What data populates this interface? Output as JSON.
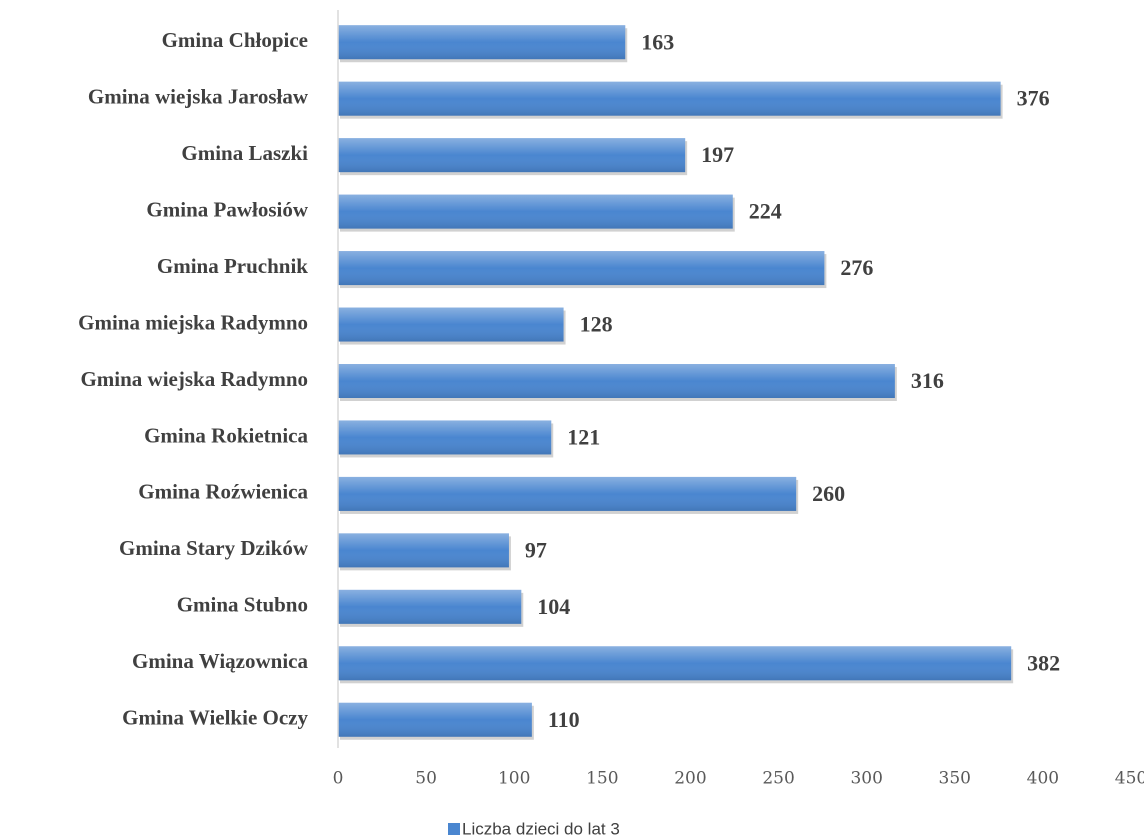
{
  "chart_data": {
    "type": "bar",
    "orientation": "horizontal",
    "categories": [
      "Gmina Chłopice",
      "Gmina wiejska Jarosław",
      "Gmina Laszki",
      "Gmina Pawłosiów",
      "Gmina Pruchnik",
      "Gmina miejska Radymno",
      "Gmina wiejska Radymno",
      "Gmina Rokietnica",
      "Gmina Roźwienica",
      "Gmina Stary Dzików",
      "Gmina Stubno",
      "Gmina Wiązownica",
      "Gmina Wielkie Oczy"
    ],
    "series": [
      {
        "name": "Liczba dzieci do lat 3",
        "color": "#4a86d0",
        "values": [
          163,
          376,
          197,
          224,
          276,
          128,
          316,
          121,
          260,
          97,
          104,
          382,
          110
        ]
      }
    ],
    "xlim": [
      0,
      450
    ],
    "xticks": [
      0,
      50,
      100,
      150,
      200,
      250,
      300,
      350,
      400,
      450
    ],
    "grid": false,
    "legend": "bottom"
  }
}
